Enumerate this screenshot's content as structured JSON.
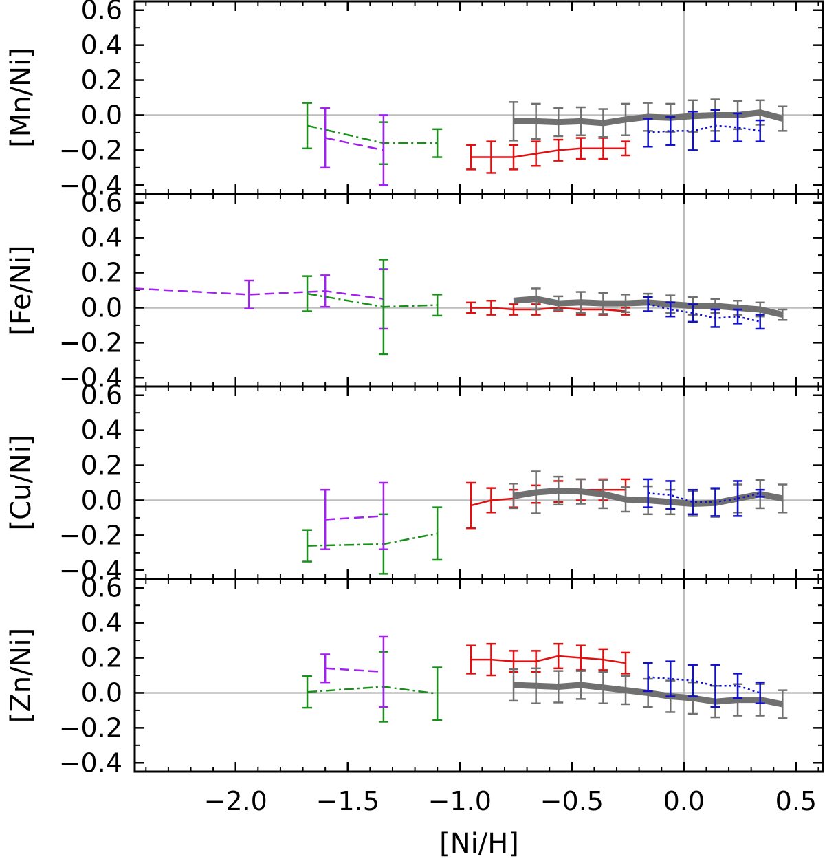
{
  "figure": {
    "xlabel": "[Ni/H]"
  },
  "chart_data": {
    "type": "line",
    "shared_x_axis": true,
    "xlabel": "[Ni/H]",
    "xlim": [
      -2.45,
      0.62
    ],
    "xticks": [
      -2.0,
      -1.5,
      -1.0,
      -0.5,
      0.0,
      0.5
    ],
    "xtick_labels": [
      "−2.0",
      "−1.5",
      "−1.0",
      "−0.5",
      "0.0",
      "0.5"
    ],
    "ylim": [
      -0.45,
      0.65
    ],
    "yticks": [
      0.6,
      0.4,
      0.2,
      0.0,
      -0.2,
      -0.4
    ],
    "ytick_labels": [
      "0.6",
      "0.4",
      "0.2",
      "0.0",
      "−0.2",
      "−0.4"
    ],
    "reference_lines": {
      "y": 0.0,
      "x": 0.0
    },
    "series_styles": [
      {
        "name": "green",
        "color": "#1a8f1a",
        "dash": "dash-dot"
      },
      {
        "name": "purple",
        "color": "#a020f0",
        "dash": "dashed"
      },
      {
        "name": "red",
        "color": "#e01010",
        "dash": "solid"
      },
      {
        "name": "gray",
        "color": "#707070",
        "dash": "solid-thick"
      },
      {
        "name": "blue",
        "color": "#1010cc",
        "dash": "dotted"
      }
    ],
    "panels": [
      {
        "ylabel": "[Mn/Ni]",
        "series": [
          {
            "name": "green",
            "x": [
              -1.68,
              -1.34,
              -1.1
            ],
            "y": [
              -0.06,
              -0.16,
              -0.16
            ],
            "err": [
              0.13,
              0.12,
              0.08
            ]
          },
          {
            "name": "purple",
            "x": [
              -1.6,
              -1.34
            ],
            "y": [
              -0.13,
              -0.2
            ],
            "err": [
              0.17,
              0.2
            ]
          },
          {
            "name": "red",
            "x": [
              -0.95,
              -0.86,
              -0.76,
              -0.66,
              -0.56,
              -0.46,
              -0.36,
              -0.26
            ],
            "y": [
              -0.24,
              -0.24,
              -0.24,
              -0.22,
              -0.2,
              -0.19,
              -0.19,
              -0.19
            ],
            "err": [
              0.07,
              0.09,
              0.07,
              0.07,
              0.06,
              0.06,
              0.06,
              0.04
            ]
          },
          {
            "name": "gray",
            "x": [
              -0.76,
              -0.66,
              -0.56,
              -0.46,
              -0.36,
              -0.26,
              -0.16,
              -0.06,
              0.04,
              0.14,
              0.24,
              0.34,
              0.44
            ],
            "y": [
              -0.035,
              -0.035,
              -0.04,
              -0.035,
              -0.045,
              -0.025,
              -0.01,
              -0.015,
              -0.005,
              0.0,
              0.0,
              0.015,
              -0.02
            ],
            "err": [
              0.11,
              0.1,
              0.08,
              0.08,
              0.08,
              0.09,
              0.08,
              0.08,
              0.09,
              0.09,
              0.08,
              0.07,
              0.07
            ]
          },
          {
            "name": "blue",
            "x": [
              -0.16,
              -0.06,
              0.04,
              0.14,
              0.24,
              0.34
            ],
            "y": [
              -0.1,
              -0.09,
              -0.09,
              -0.06,
              -0.07,
              -0.09
            ],
            "err": [
              0.08,
              0.08,
              0.11,
              0.09,
              0.08,
              0.06
            ]
          }
        ]
      },
      {
        "ylabel": "[Fe/Ni]",
        "series": [
          {
            "name": "purple",
            "x": [
              -2.45,
              -1.94,
              -1.6,
              -1.34
            ],
            "y": [
              0.11,
              0.075,
              0.095,
              0.05
            ],
            "err": [
              0.0,
              0.08,
              0.09,
              0.17
            ]
          },
          {
            "name": "green",
            "x": [
              -1.68,
              -1.34,
              -1.1
            ],
            "y": [
              0.08,
              0.005,
              0.015
            ],
            "err": [
              0.1,
              0.27,
              0.06
            ]
          },
          {
            "name": "red",
            "x": [
              -0.95,
              -0.86,
              -0.76,
              -0.66,
              -0.56,
              -0.46,
              -0.36,
              -0.26
            ],
            "y": [
              0.0,
              0.0,
              -0.01,
              -0.01,
              0.0,
              -0.01,
              -0.01,
              -0.02
            ],
            "err": [
              0.03,
              0.04,
              0.03,
              0.03,
              0.02,
              0.03,
              0.03,
              0.02
            ]
          },
          {
            "name": "gray",
            "x": [
              -0.76,
              -0.66,
              -0.56,
              -0.46,
              -0.36,
              -0.26,
              -0.16,
              -0.06,
              0.04,
              0.14,
              0.24,
              0.34,
              0.44
            ],
            "y": [
              0.04,
              0.05,
              0.025,
              0.03,
              0.025,
              0.025,
              0.03,
              0.02,
              0.01,
              0.01,
              0.0,
              -0.01,
              -0.04
            ],
            "err": [
              0.0,
              0.06,
              0.04,
              0.06,
              0.06,
              0.05,
              0.05,
              0.05,
              0.05,
              0.04,
              0.04,
              0.04,
              0.03
            ]
          },
          {
            "name": "blue",
            "x": [
              -0.16,
              -0.06,
              0.04,
              0.14,
              0.24,
              0.34
            ],
            "y": [
              0.02,
              -0.01,
              -0.03,
              -0.06,
              -0.05,
              -0.08
            ],
            "err": [
              0.04,
              0.04,
              0.05,
              0.05,
              0.04,
              0.04
            ]
          }
        ]
      },
      {
        "ylabel": "[Cu/Ni]",
        "series": [
          {
            "name": "green",
            "x": [
              -1.68,
              -1.34,
              -1.1
            ],
            "y": [
              -0.26,
              -0.25,
              -0.19
            ],
            "err": [
              0.09,
              0.17,
              0.15
            ]
          },
          {
            "name": "purple",
            "x": [
              -1.6,
              -1.34
            ],
            "y": [
              -0.11,
              -0.09
            ],
            "err": [
              0.17,
              0.19
            ]
          },
          {
            "name": "red",
            "x": [
              -0.95,
              -0.86,
              -0.76,
              -0.66,
              -0.56,
              -0.46,
              -0.36,
              -0.26
            ],
            "y": [
              -0.03,
              0.0,
              0.01,
              0.035,
              0.05,
              0.06,
              0.06,
              0.06
            ],
            "err": [
              0.13,
              0.07,
              0.05,
              0.05,
              0.06,
              0.06,
              0.06,
              0.06
            ]
          },
          {
            "name": "gray",
            "x": [
              -0.76,
              -0.66,
              -0.56,
              -0.46,
              -0.36,
              -0.26,
              -0.16,
              -0.06,
              0.04,
              0.14,
              0.24,
              0.34,
              0.44
            ],
            "y": [
              0.025,
              0.045,
              0.055,
              0.05,
              0.035,
              0.005,
              0.0,
              -0.01,
              -0.02,
              -0.015,
              0.01,
              0.035,
              0.01
            ],
            "err": [
              0.07,
              0.12,
              0.08,
              0.07,
              0.08,
              0.07,
              0.08,
              0.07,
              0.07,
              0.08,
              0.08,
              0.08,
              0.08
            ]
          },
          {
            "name": "blue",
            "x": [
              -0.16,
              -0.06,
              0.04,
              0.14,
              0.24,
              0.34
            ],
            "y": [
              0.04,
              0.03,
              -0.01,
              -0.01,
              0.01,
              0.04
            ],
            "err": [
              0.08,
              0.08,
              0.07,
              0.08,
              0.1,
              0.02
            ]
          }
        ]
      },
      {
        "ylabel": "[Zn/Ni]",
        "series": [
          {
            "name": "green",
            "x": [
              -1.68,
              -1.34,
              -1.1
            ],
            "y": [
              0.005,
              0.035,
              -0.005
            ],
            "err": [
              0.09,
              0.2,
              0.15
            ]
          },
          {
            "name": "purple",
            "x": [
              -1.6,
              -1.34
            ],
            "y": [
              0.14,
              0.12
            ],
            "err": [
              0.08,
              0.2
            ]
          },
          {
            "name": "red",
            "x": [
              -0.95,
              -0.86,
              -0.76,
              -0.66,
              -0.56,
              -0.46,
              -0.36,
              -0.26
            ],
            "y": [
              0.19,
              0.19,
              0.18,
              0.18,
              0.21,
              0.2,
              0.19,
              0.17
            ],
            "err": [
              0.08,
              0.09,
              0.06,
              0.06,
              0.07,
              0.07,
              0.06,
              0.06
            ]
          },
          {
            "name": "gray",
            "x": [
              -0.76,
              -0.66,
              -0.56,
              -0.46,
              -0.36,
              -0.26,
              -0.16,
              -0.06,
              0.04,
              0.14,
              0.24,
              0.34,
              0.44
            ],
            "y": [
              0.045,
              0.04,
              0.035,
              0.045,
              0.03,
              0.015,
              0.0,
              -0.02,
              -0.03,
              -0.05,
              -0.04,
              -0.04,
              -0.065
            ],
            "err": [
              0.09,
              0.1,
              0.09,
              0.08,
              0.09,
              0.08,
              0.08,
              0.09,
              0.09,
              0.09,
              0.09,
              0.09,
              0.08
            ]
          },
          {
            "name": "blue",
            "x": [
              -0.16,
              -0.06,
              0.04,
              0.14,
              0.24,
              0.34
            ],
            "y": [
              0.09,
              0.08,
              0.07,
              0.04,
              0.04,
              0.0
            ],
            "err": [
              0.08,
              0.1,
              0.09,
              0.12,
              0.07,
              0.06
            ]
          }
        ]
      }
    ]
  }
}
